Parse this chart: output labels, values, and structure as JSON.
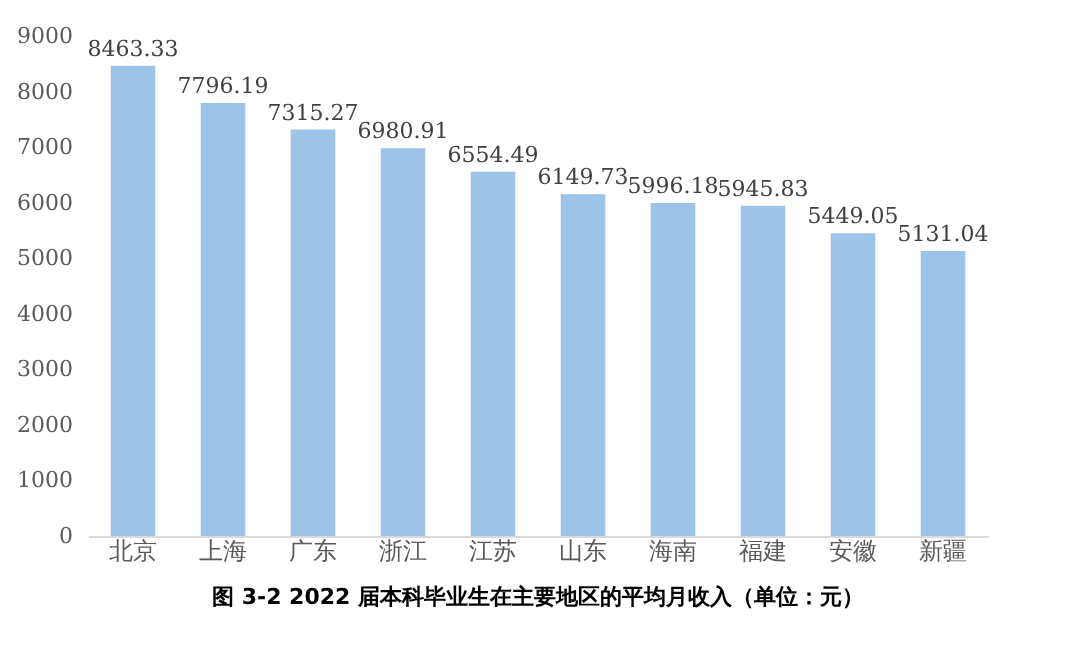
{
  "chart_data": {
    "type": "bar",
    "title": "图 3-2   2022 届本科毕业生在主要地区的平均月收入（单位：元）",
    "categories": [
      "北京",
      "上海",
      "广东",
      "浙江",
      "江苏",
      "山东",
      "海南",
      "福建",
      "安徽",
      "新疆"
    ],
    "values": [
      8463.33,
      7796.19,
      7315.27,
      6980.91,
      6554.49,
      6149.73,
      5996.18,
      5945.83,
      5449.05,
      5131.04
    ],
    "color": "#9dc3e6",
    "ylim": [
      0,
      9000
    ],
    "yticks": [
      0,
      1000,
      2000,
      3000,
      4000,
      5000,
      6000,
      7000,
      8000,
      9000
    ],
    "data_labels": true
  }
}
